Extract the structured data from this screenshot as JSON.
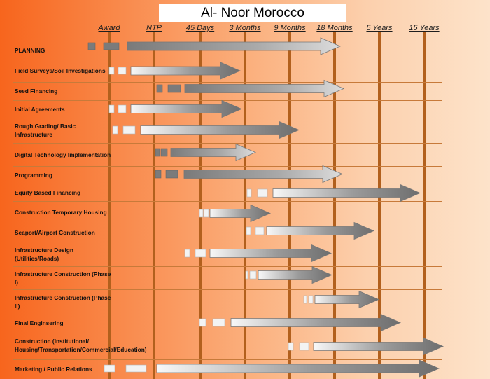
{
  "title": "Al- Noor Morocco",
  "milestones": [
    "Award",
    "NTP",
    "45 Days",
    "3 Months",
    "9 Months",
    "18 Months",
    "5 Years",
    "15 Years"
  ],
  "activities": [
    {
      "label": "PLANNING",
      "shade": "dark"
    },
    {
      "label": "Field Surveys/Soil Investigations",
      "shade": "light"
    },
    {
      "label": "Seed Financing",
      "shade": "dark"
    },
    {
      "label": "Initial Agreements",
      "shade": "light"
    },
    {
      "label": "Rough Grading/ Basic Infrastructure",
      "shade": "light"
    },
    {
      "label": "Digital Technology Implementation",
      "shade": "dark"
    },
    {
      "label": "Programming",
      "shade": "dark"
    },
    {
      "label": "Equity Based Financing",
      "shade": "light"
    },
    {
      "label": "Construction Temporary Housing",
      "shade": "light"
    },
    {
      "label": "Seaport/Airport Construction",
      "shade": "light"
    },
    {
      "label": "Infrastructure Design (Utilities/Roads)",
      "shade": "light"
    },
    {
      "label": "Infrastructure Construction (Phase I)",
      "shade": "light"
    },
    {
      "label": "Infrastructure Construction (Phase II)",
      "shade": "light"
    },
    {
      "label": "Final Enginsering",
      "shade": "light"
    },
    {
      "label": "Construction (Institutional/ Housing/Transportation/Commercial/Education)",
      "shade": "light"
    },
    {
      "label": "Marketing / Public Relations",
      "shade": "light"
    }
  ],
  "colors": {
    "background_start": "#f7651d",
    "background_end": "#fde3ca",
    "milestone_line": "#b2601d",
    "arrow_dark": "#808080",
    "arrow_light": "#f4f4f4"
  }
}
